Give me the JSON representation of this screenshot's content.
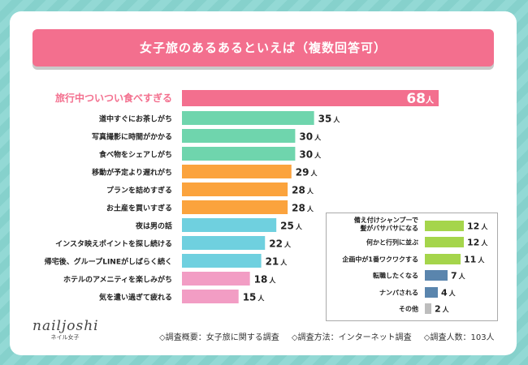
{
  "title": "女子旅のあるあるといえば（複数回答可）",
  "logo": {
    "name": "nailjoshi",
    "sub": "ネイル女子"
  },
  "footer": {
    "overview": "◇調査概要：女子旅に関する調査",
    "method": "◇調査方法：インターネット調査",
    "count": "◇調査人数：103人"
  },
  "chart_data": [
    {
      "type": "bar",
      "orientation": "horizontal",
      "value_unit": "人",
      "highlight_color": "#f36f8e",
      "categories": [
        "旅行中ついつい食べすぎる",
        "道中すぐにお茶しがち",
        "写真撮影に時間がかかる",
        "食べ物をシェアしがち",
        "移動が予定より遅れがち",
        "プランを詰めすぎる",
        "お土産を買いすぎる",
        "夜は男の話",
        "インスタ映えポイントを探し続ける",
        "帰宅後、グループLINEがしばらく続く",
        "ホテルのアメニティを楽しみがち",
        "気を遣い過ぎて疲れる"
      ],
      "values": [
        68,
        35,
        30,
        30,
        29,
        28,
        28,
        25,
        22,
        21,
        18,
        15
      ],
      "colors": [
        "#f36f8e",
        "#6fd5ad",
        "#6fd5ad",
        "#6fd5ad",
        "#fba33d",
        "#fba33d",
        "#fba33d",
        "#6fd0df",
        "#6fd0df",
        "#6fd0df",
        "#f29dc4",
        "#f29dc4"
      ]
    },
    {
      "type": "bar",
      "orientation": "horizontal",
      "value_unit": "人",
      "categories": [
        [
          "備え付けシャンプーで",
          "髪がバサバサになる"
        ],
        "何かと行列に並ぶ",
        "企画中が1番ワクワクする",
        "転職したくなる",
        "ナンパされる",
        "その他"
      ],
      "values": [
        12,
        12,
        11,
        7,
        4,
        2
      ],
      "colors": [
        "#a5d54b",
        "#a5d54b",
        "#a5d54b",
        "#5a85ad",
        "#5a85ad",
        "#bdbdbd"
      ]
    }
  ]
}
